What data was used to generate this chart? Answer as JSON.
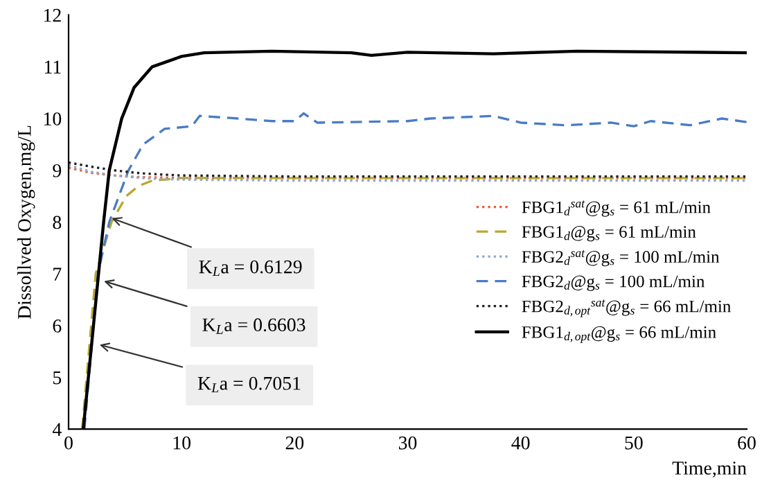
{
  "chart_data": {
    "type": "line",
    "xlabel": "Time,min",
    "ylabel": "Dissollved Oxygen,mg/L",
    "xlim": [
      0,
      60
    ],
    "ylim": [
      4,
      12
    ],
    "xticks": [
      0,
      10,
      20,
      30,
      40,
      50,
      60
    ],
    "yticks": [
      4,
      5,
      6,
      7,
      8,
      9,
      10,
      11,
      12
    ],
    "grid": false,
    "legend": "right",
    "series": [
      {
        "name": "FBG1$_{d}$$^{sat}$@g$_{s}$ = 61 mL/min",
        "color": "#e8603c",
        "line_style": "dotted",
        "x": [
          0,
          2,
          4,
          6,
          8,
          10,
          20,
          30,
          40,
          50,
          60
        ],
        "values": [
          9.05,
          8.95,
          8.9,
          8.87,
          8.86,
          8.85,
          8.85,
          8.85,
          8.85,
          8.85,
          8.85
        ]
      },
      {
        "name": "FBG1$_{d}$@g$_{s}$ = 61 mL/min",
        "color": "#b8a830",
        "line_style": "dashed",
        "x": [
          1.2,
          2.4,
          3.8,
          5.1,
          6.2,
          7.4,
          10,
          20,
          30,
          40,
          50,
          60
        ],
        "values": [
          4,
          7,
          8,
          8.5,
          8.7,
          8.8,
          8.85,
          8.85,
          8.85,
          8.85,
          8.85,
          8.85
        ]
      },
      {
        "name": "FBG2$_{d}$$^{sat}$@g$_{s}$ = 100 mL/min",
        "color": "#8fa8d0",
        "line_style": "dotted",
        "x": [
          0,
          2,
          4,
          6,
          8,
          10,
          20,
          30,
          40,
          50,
          60
        ],
        "values": [
          9.1,
          8.97,
          8.9,
          8.86,
          8.83,
          8.82,
          8.8,
          8.8,
          8.8,
          8.8,
          8.8
        ]
      },
      {
        "name": "FBG2$_{d}$@g$_{s}$ = 100 mL/min",
        "color": "#4a7cc4",
        "line_style": "dashed",
        "x": [
          1.4,
          2.6,
          3.6,
          5.3,
          6.6,
          8.5,
          10.9,
          11.6,
          15,
          18,
          20,
          20.8,
          22,
          30,
          32,
          37.6,
          40,
          44,
          48,
          50,
          51.5,
          55,
          57.8,
          60
        ],
        "values": [
          4,
          7,
          8,
          9,
          9.5,
          9.8,
          9.85,
          10.05,
          10.0,
          9.95,
          9.95,
          10.1,
          9.92,
          9.95,
          10.0,
          10.05,
          9.92,
          9.87,
          9.92,
          9.85,
          9.95,
          9.87,
          10.0,
          9.93
        ]
      },
      {
        "name": "FBG2$_{d,opt}$$^{sat}$@g$_{s}$ = 66 mL/min",
        "color": "#222222",
        "line_style": "dotted",
        "x": [
          0,
          2,
          4,
          6,
          8,
          10,
          20,
          30,
          40,
          50,
          60
        ],
        "values": [
          9.15,
          9.07,
          9.0,
          8.95,
          8.92,
          8.9,
          8.88,
          8.88,
          8.88,
          8.88,
          8.88
        ]
      },
      {
        "name": "FBG1$_{d,opt}$@g$_{s}$ = 66 mL/min",
        "color": "#000000",
        "line_style": "solid",
        "x": [
          1.3,
          3.1,
          3.6,
          4.7,
          5.8,
          7.4,
          10,
          12,
          18,
          25,
          26.8,
          30,
          37.6,
          45,
          60
        ],
        "values": [
          4,
          8,
          9,
          10,
          10.6,
          11,
          11.2,
          11.27,
          11.3,
          11.27,
          11.22,
          11.28,
          11.25,
          11.3,
          11.27
        ]
      }
    ],
    "annotations": [
      {
        "text": "K$_{L}$a = 0.6129",
        "x": 3.5,
        "y": 8.1
      },
      {
        "text": "K$_{L}$a = 0.6603",
        "x": 2.8,
        "y": 6.88
      },
      {
        "text": "K$_{L}$a = 0.7051",
        "x": 2.4,
        "y": 5.65
      }
    ]
  }
}
